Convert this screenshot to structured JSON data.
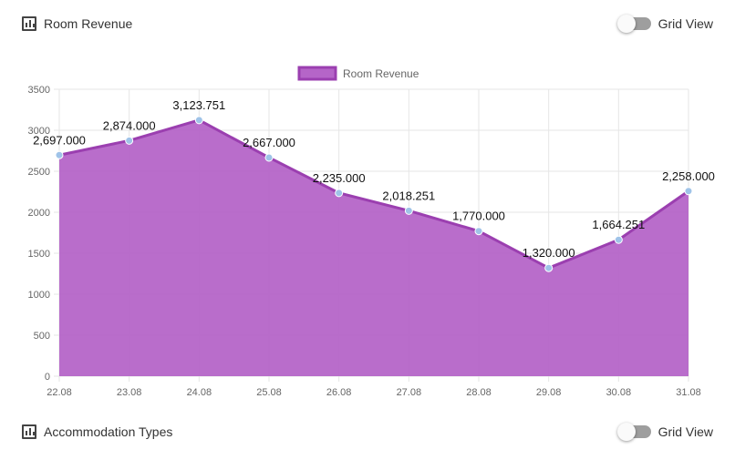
{
  "revenue_section": {
    "title": "Room Revenue",
    "toggle_label": "Grid View",
    "icon": "bar-chart-icon"
  },
  "accommodation_section": {
    "title": "Accommodation Types",
    "toggle_label": "Grid View",
    "icon": "bar-chart-icon"
  },
  "colors": {
    "area_fill": "#b565c8",
    "line": "#9b3fb0",
    "point": "#9fc3e8",
    "grid": "#e6e6e6",
    "text": "#666666"
  },
  "chart_data": {
    "type": "area",
    "title": "",
    "xlabel": "",
    "ylabel": "",
    "categories": [
      "22.08",
      "23.08",
      "24.08",
      "25.08",
      "26.08",
      "27.08",
      "28.08",
      "29.08",
      "30.08",
      "31.08"
    ],
    "series": [
      {
        "name": "Room Revenue",
        "values": [
          2697.0,
          2874.0,
          3123.751,
          2667.0,
          2235.0,
          2018.251,
          1770.0,
          1320.0,
          1664.251,
          2258.0
        ],
        "labels": [
          "2,697.000",
          "2,874.000",
          "3,123.751",
          "2,667.000",
          "2,235.000",
          "2,018.251",
          "1,770.000",
          "1,320.000",
          "1,664.251",
          "2,258.000"
        ]
      }
    ],
    "ylim": [
      0,
      3500
    ],
    "yticks": [
      0,
      500,
      1000,
      1500,
      2000,
      2500,
      3000,
      3500
    ],
    "grid": true,
    "legend": "top-center"
  }
}
